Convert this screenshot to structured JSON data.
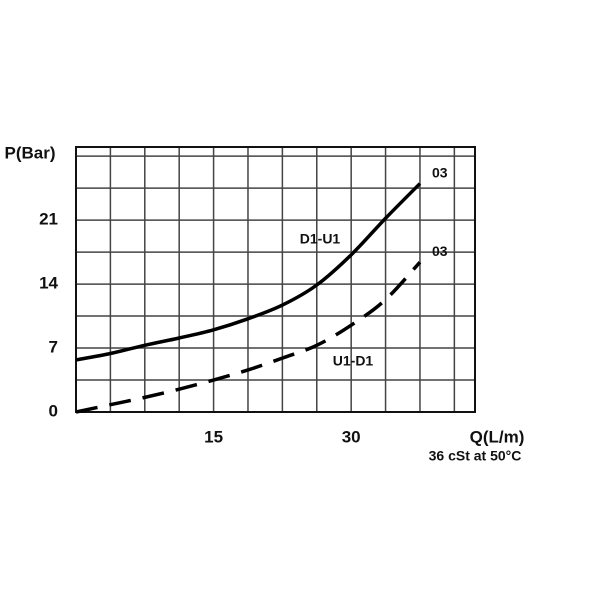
{
  "chart_data": {
    "type": "line",
    "y_label": "P(Bar)",
    "x_label": "Q(L/m)",
    "note": "36 cSt at 50°C",
    "xlim": [
      0,
      43.5
    ],
    "ylim": [
      0,
      29
    ],
    "xticks": [
      15,
      30
    ],
    "yticks": [
      0,
      7,
      14,
      21
    ],
    "xgrid": [
      3.75,
      7.5,
      11.25,
      15,
      18.75,
      22.5,
      26.25,
      30,
      33.75,
      37.5,
      41.25
    ],
    "ygrid": [
      3.5,
      7,
      10.5,
      14,
      17.5,
      21,
      24.5,
      28
    ],
    "grid": true,
    "x": [
      0,
      3.75,
      7.5,
      11.25,
      15,
      18.75,
      22.5,
      26.25,
      30,
      33.75,
      37.5
    ],
    "series": [
      {
        "name": "D1-U1",
        "end_label": "03",
        "color": "#000000",
        "dash": false,
        "values": [
          5.7,
          6.4,
          7.3,
          8.1,
          9.0,
          10.2,
          11.7,
          13.9,
          17.2,
          21.2,
          25.0
        ]
      },
      {
        "name": "U1-D1",
        "end_label": "03",
        "color": "#000000",
        "dash": true,
        "values": [
          0,
          0.8,
          1.6,
          2.5,
          3.5,
          4.6,
          5.9,
          7.3,
          9.5,
          12.3,
          16.4
        ]
      }
    ]
  }
}
